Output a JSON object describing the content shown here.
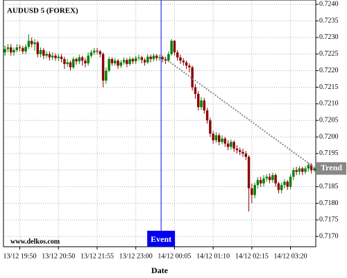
{
  "chart_data": {
    "type": "candlestick",
    "title": "AUDUSD 5 (FOREX)",
    "x_label": "Date",
    "watermark": "www.delkos.com",
    "event": {
      "label": "Event",
      "color": "#0000ee"
    },
    "trend": {
      "label": "Trend",
      "start": 0.72245,
      "end": 0.71905,
      "color": "#888888"
    },
    "up_color": "#008000",
    "down_color": "#8b0000",
    "grid": true,
    "categories": [
      null,
      null,
      null,
      null,
      null,
      "13/12 19:50",
      null,
      null,
      null,
      null,
      null,
      null,
      null,
      null,
      null,
      null,
      null,
      null,
      "13/12 20:50",
      null,
      null,
      null,
      null,
      null,
      null,
      null,
      null,
      null,
      null,
      null,
      null,
      "13/12 21:55",
      null,
      null,
      null,
      null,
      null,
      null,
      null,
      null,
      null,
      null,
      null,
      null,
      "13/12 23:00",
      null,
      null,
      null,
      null,
      null,
      null,
      null,
      null,
      null,
      null,
      null,
      null,
      "14/12 00:05",
      null,
      null,
      null,
      null,
      null,
      null,
      null,
      null,
      null,
      null,
      null,
      null,
      "14/12 01:10",
      null,
      null,
      null,
      null,
      null,
      null,
      null,
      null,
      null,
      null,
      null,
      null,
      "14/12 02:15",
      null,
      null,
      null,
      null,
      null,
      null,
      null,
      null,
      null,
      null,
      null,
      null,
      "14/12 03:20",
      null,
      null,
      null,
      null,
      null,
      null,
      null,
      null
    ],
    "open": [
      0.72255,
      0.72265,
      0.7227,
      0.72255,
      0.72262,
      0.7227,
      0.72268,
      0.72258,
      0.72272,
      0.7229,
      0.7228,
      0.72285,
      0.7225,
      0.72262,
      0.72245,
      0.7225,
      0.7224,
      0.72245,
      0.72238,
      0.72242,
      0.72235,
      0.7222,
      0.72225,
      0.7221,
      0.72235,
      0.72228,
      0.7224,
      0.7223,
      0.72222,
      0.72245,
      0.72255,
      0.7226,
      0.72258,
      0.7225,
      0.7217,
      0.722,
      0.72235,
      0.72222,
      0.7223,
      0.72215,
      0.72225,
      0.72232,
      0.7222,
      0.72235,
      0.72228,
      0.72238,
      0.7224,
      0.72232,
      0.72225,
      0.72242,
      0.72235,
      0.72245,
      0.72238,
      0.7224,
      0.72235,
      0.7223,
      0.7225,
      0.7229,
      0.72255,
      0.7224,
      0.7223,
      0.72225,
      0.72215,
      0.7221,
      0.7215,
      0.7213,
      0.7209,
      0.7211,
      0.7208,
      0.7205,
      0.7201,
      0.7199,
      0.72005,
      0.71985,
      0.71995,
      0.7198,
      0.7197,
      0.71985,
      0.71965,
      0.7196,
      0.71955,
      0.7195,
      0.7194,
      0.71845,
      0.71825,
      0.71855,
      0.7187,
      0.7186,
      0.71875,
      0.7188,
      0.7187,
      0.71885,
      0.7186,
      0.7184,
      0.71855,
      0.71865,
      0.7185,
      0.7188,
      0.719,
      0.71895,
      0.71905,
      0.71895,
      0.71905,
      0.71915,
      0.719
    ],
    "high": [
      0.72275,
      0.7228,
      0.7228,
      0.7227,
      0.7228,
      0.72278,
      0.72275,
      0.7228,
      0.7231,
      0.723,
      0.72295,
      0.7229,
      0.7227,
      0.72268,
      0.72258,
      0.72258,
      0.72255,
      0.72252,
      0.7225,
      0.7225,
      0.72242,
      0.72235,
      0.7223,
      0.72242,
      0.7224,
      0.72248,
      0.72245,
      0.72238,
      0.72255,
      0.72262,
      0.72268,
      0.72268,
      0.72262,
      0.72255,
      0.7221,
      0.72242,
      0.7224,
      0.72238,
      0.72235,
      0.72232,
      0.7224,
      0.72238,
      0.72242,
      0.7224,
      0.72245,
      0.72248,
      0.72245,
      0.72238,
      0.7225,
      0.72248,
      0.72252,
      0.7225,
      0.72248,
      0.72245,
      0.72242,
      0.72258,
      0.72295,
      0.72292,
      0.72262,
      0.72248,
      0.72238,
      0.7223,
      0.72222,
      0.72215,
      0.7216,
      0.72138,
      0.7212,
      0.72118,
      0.72088,
      0.72058,
      0.72018,
      0.72015,
      0.72012,
      0.72005,
      0.72,
      0.7199,
      0.71992,
      0.7199,
      0.71975,
      0.71968,
      0.71965,
      0.71958,
      0.71945,
      0.7186,
      0.71862,
      0.71878,
      0.7188,
      0.71885,
      0.71888,
      0.7189,
      0.71892,
      0.7189,
      0.71865,
      0.71862,
      0.71872,
      0.7187,
      0.71888,
      0.71908,
      0.7191,
      0.71912,
      0.7191,
      0.71912,
      0.71922,
      0.7192,
      0.7191
    ],
    "low": [
      0.72245,
      0.72255,
      0.72245,
      0.72245,
      0.72255,
      0.72258,
      0.7225,
      0.7225,
      0.72265,
      0.7227,
      0.7226,
      0.7224,
      0.7224,
      0.72235,
      0.72238,
      0.7223,
      0.72232,
      0.7223,
      0.72228,
      0.72225,
      0.72205,
      0.72212,
      0.722,
      0.72205,
      0.72218,
      0.7222,
      0.72215,
      0.7221,
      0.72215,
      0.72238,
      0.72248,
      0.7225,
      0.7224,
      0.7215,
      0.7216,
      0.72195,
      0.72215,
      0.72215,
      0.72205,
      0.72208,
      0.72218,
      0.7221,
      0.72215,
      0.7222,
      0.7222,
      0.7223,
      0.72222,
      0.72215,
      0.7222,
      0.72225,
      0.72228,
      0.7223,
      0.7223,
      0.72225,
      0.7222,
      0.72225,
      0.72245,
      0.72245,
      0.7223,
      0.7222,
      0.72215,
      0.72205,
      0.72195,
      0.7214,
      0.72115,
      0.7208,
      0.72082,
      0.7207,
      0.7204,
      0.72,
      0.7198,
      0.71982,
      0.71975,
      0.71978,
      0.7197,
      0.7196,
      0.71962,
      0.71955,
      0.7195,
      0.71945,
      0.7194,
      0.7193,
      0.71775,
      0.718,
      0.71815,
      0.71845,
      0.7185,
      0.7185,
      0.71865,
      0.7186,
      0.71862,
      0.7185,
      0.7183,
      0.7183,
      0.71845,
      0.7184,
      0.71842,
      0.7187,
      0.71885,
      0.71885,
      0.71885,
      0.71888,
      0.71895,
      0.7189,
      0.71895
    ],
    "close": [
      0.72265,
      0.7227,
      0.72255,
      0.72262,
      0.7227,
      0.72268,
      0.72258,
      0.72272,
      0.7229,
      0.7228,
      0.72285,
      0.7225,
      0.72262,
      0.72245,
      0.7225,
      0.7224,
      0.72245,
      0.72238,
      0.72242,
      0.72235,
      0.7222,
      0.72225,
      0.7221,
      0.72235,
      0.72228,
      0.7224,
      0.7223,
      0.72222,
      0.72245,
      0.72255,
      0.7226,
      0.72258,
      0.7225,
      0.7217,
      0.722,
      0.72235,
      0.72222,
      0.7223,
      0.72215,
      0.72225,
      0.72232,
      0.7222,
      0.72235,
      0.72228,
      0.72238,
      0.7224,
      0.72232,
      0.72225,
      0.72242,
      0.72235,
      0.72245,
      0.72238,
      0.7224,
      0.72235,
      0.7223,
      0.7225,
      0.7229,
      0.72255,
      0.7224,
      0.7223,
      0.72225,
      0.72215,
      0.7221,
      0.7215,
      0.7213,
      0.7209,
      0.7211,
      0.7208,
      0.7205,
      0.7201,
      0.7199,
      0.72005,
      0.71985,
      0.71995,
      0.7198,
      0.7197,
      0.71985,
      0.71965,
      0.7196,
      0.71955,
      0.7195,
      0.7194,
      0.71845,
      0.71825,
      0.71855,
      0.7187,
      0.7186,
      0.71875,
      0.7188,
      0.7187,
      0.71885,
      0.7186,
      0.7184,
      0.71855,
      0.71865,
      0.7185,
      0.7188,
      0.719,
      0.71895,
      0.71905,
      0.71895,
      0.71905,
      0.71915,
      0.719,
      0.71905
    ],
    "ylim": [
      0.71669,
      0.72413
    ],
    "yticks": [
      {
        "value": 0.717,
        "label": "0.7170"
      },
      {
        "value": 0.7175,
        "label": "0.7175"
      },
      {
        "value": 0.718,
        "label": "0.7180"
      },
      {
        "value": 0.7185,
        "label": "0.7185"
      },
      {
        "value": 0.719,
        "label": "0.7190"
      },
      {
        "value": 0.7195,
        "label": "0.7195"
      },
      {
        "value": 0.72,
        "label": "0.7200"
      },
      {
        "value": 0.7205,
        "label": "0.7205"
      },
      {
        "value": 0.721,
        "label": "0.7210"
      },
      {
        "value": 0.7215,
        "label": "0.7215"
      },
      {
        "value": 0.722,
        "label": "0.7220"
      },
      {
        "value": 0.7225,
        "label": "0.7225"
      },
      {
        "value": 0.723,
        "label": "0.7230"
      },
      {
        "value": 0.7235,
        "label": "0.7235"
      },
      {
        "value": 0.724,
        "label": "0.7240"
      }
    ]
  }
}
